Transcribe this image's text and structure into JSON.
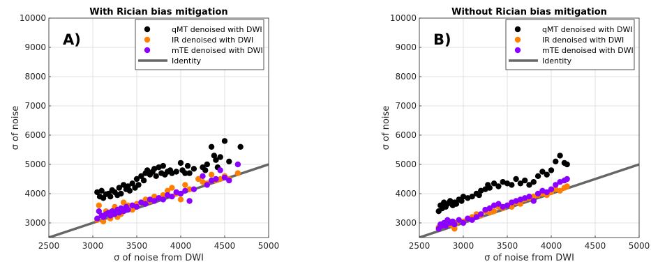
{
  "chart_data": [
    {
      "type": "scatter",
      "panel_label": "A)",
      "title": "With Rician bias mitigation",
      "xlabel": "σ of noise from DWI",
      "ylabel": "σ of noise",
      "xlim": [
        2500,
        5000
      ],
      "ylim": [
        2500,
        10000
      ],
      "xticks": [
        2500,
        3000,
        3500,
        4000,
        4500,
        5000
      ],
      "yticks": [
        3000,
        4000,
        5000,
        6000,
        7000,
        8000,
        9000,
        10000
      ],
      "grid": true,
      "legend_position": "top-right",
      "series": [
        {
          "name": "qMT denoised with DWI",
          "color": "#000000",
          "points": [
            [
              3050,
              4050
            ],
            [
              3080,
              3900
            ],
            [
              3100,
              4100
            ],
            [
              3120,
              3850
            ],
            [
              3150,
              3980
            ],
            [
              3180,
              4000
            ],
            [
              3200,
              3900
            ],
            [
              3220,
              4120
            ],
            [
              3250,
              4050
            ],
            [
              3280,
              3950
            ],
            [
              3300,
              4200
            ],
            [
              3320,
              4000
            ],
            [
              3350,
              4300
            ],
            [
              3380,
              4150
            ],
            [
              3400,
              4250
            ],
            [
              3420,
              4100
            ],
            [
              3450,
              4350
            ],
            [
              3480,
              4200
            ],
            [
              3500,
              4500
            ],
            [
              3520,
              4300
            ],
            [
              3550,
              4600
            ],
            [
              3580,
              4450
            ],
            [
              3600,
              4700
            ],
            [
              3620,
              4800
            ],
            [
              3650,
              4650
            ],
            [
              3680,
              4750
            ],
            [
              3700,
              4850
            ],
            [
              3720,
              4600
            ],
            [
              3750,
              4900
            ],
            [
              3780,
              4700
            ],
            [
              3800,
              4950
            ],
            [
              3820,
              4650
            ],
            [
              3850,
              4750
            ],
            [
              3880,
              4800
            ],
            [
              3900,
              4700
            ],
            [
              3950,
              4750
            ],
            [
              4000,
              5050
            ],
            [
              4020,
              4800
            ],
            [
              4050,
              4700
            ],
            [
              4080,
              4950
            ],
            [
              4100,
              4700
            ],
            [
              4150,
              4850
            ],
            [
              4250,
              4900
            ],
            [
              4280,
              4800
            ],
            [
              4300,
              5000
            ],
            [
              4350,
              5600
            ],
            [
              4380,
              5300
            ],
            [
              4400,
              5150
            ],
            [
              4420,
              4900
            ],
            [
              4450,
              5250
            ],
            [
              4500,
              5800
            ],
            [
              4550,
              5100
            ],
            [
              4680,
              5600
            ]
          ]
        },
        {
          "name": "IR denoised with DWI",
          "color": "#ff8000",
          "points": [
            [
              3050,
              3100
            ],
            [
              3070,
              3600
            ],
            [
              3100,
              3250
            ],
            [
              3120,
              3050
            ],
            [
              3150,
              3400
            ],
            [
              3180,
              3300
            ],
            [
              3200,
              3150
            ],
            [
              3220,
              3350
            ],
            [
              3250,
              3550
            ],
            [
              3280,
              3200
            ],
            [
              3300,
              3400
            ],
            [
              3320,
              3300
            ],
            [
              3350,
              3700
            ],
            [
              3380,
              3500
            ],
            [
              3400,
              3600
            ],
            [
              3450,
              3450
            ],
            [
              3500,
              3650
            ],
            [
              3550,
              3700
            ],
            [
              3600,
              3800
            ],
            [
              3650,
              3750
            ],
            [
              3700,
              3900
            ],
            [
              3750,
              3850
            ],
            [
              3800,
              3950
            ],
            [
              3850,
              4100
            ],
            [
              3900,
              4200
            ],
            [
              3950,
              4000
            ],
            [
              4000,
              3800
            ],
            [
              4050,
              4300
            ],
            [
              4100,
              4150
            ],
            [
              4200,
              4500
            ],
            [
              4250,
              4400
            ],
            [
              4300,
              4350
            ],
            [
              4350,
              4650
            ],
            [
              4400,
              4450
            ],
            [
              4450,
              4500
            ],
            [
              4500,
              4600
            ],
            [
              4550,
              4500
            ],
            [
              4650,
              4700
            ]
          ]
        },
        {
          "name": "mTE denoised with DWI",
          "color": "#8b00ff",
          "points": [
            [
              3050,
              3150
            ],
            [
              3070,
              3400
            ],
            [
              3100,
              3250
            ],
            [
              3120,
              3200
            ],
            [
              3150,
              3300
            ],
            [
              3180,
              3350
            ],
            [
              3200,
              3250
            ],
            [
              3220,
              3400
            ],
            [
              3250,
              3300
            ],
            [
              3280,
              3450
            ],
            [
              3300,
              3350
            ],
            [
              3320,
              3500
            ],
            [
              3350,
              3400
            ],
            [
              3380,
              3550
            ],
            [
              3400,
              3450
            ],
            [
              3450,
              3600
            ],
            [
              3500,
              3550
            ],
            [
              3550,
              3700
            ],
            [
              3600,
              3650
            ],
            [
              3650,
              3800
            ],
            [
              3700,
              3750
            ],
            [
              3750,
              3850
            ],
            [
              3800,
              3800
            ],
            [
              3850,
              3950
            ],
            [
              3900,
              3900
            ],
            [
              3950,
              4050
            ],
            [
              4000,
              4000
            ],
            [
              4050,
              4100
            ],
            [
              4100,
              3750
            ],
            [
              4150,
              4150
            ],
            [
              4250,
              4600
            ],
            [
              4300,
              4300
            ],
            [
              4350,
              4450
            ],
            [
              4400,
              4500
            ],
            [
              4450,
              4800
            ],
            [
              4500,
              4550
            ],
            [
              4550,
              4450
            ],
            [
              4650,
              5000
            ]
          ]
        }
      ],
      "identity": {
        "name": "Identity",
        "color": "#666666",
        "from": [
          2500,
          2500
        ],
        "to": [
          5000,
          5000
        ]
      }
    },
    {
      "type": "scatter",
      "panel_label": "B)",
      "title": "Without Rician bias mitigation",
      "xlabel": "σ of noise from DWI",
      "ylabel": "σ of noise",
      "xlim": [
        2500,
        5000
      ],
      "ylim": [
        2500,
        10000
      ],
      "xticks": [
        2500,
        3000,
        3500,
        4000,
        4500,
        5000
      ],
      "yticks": [
        3000,
        4000,
        5000,
        6000,
        7000,
        8000,
        9000,
        10000
      ],
      "grid": true,
      "legend_position": "top-right",
      "series": [
        {
          "name": "qMT denoised with DWI",
          "color": "#000000",
          "points": [
            [
              2720,
              3400
            ],
            [
              2740,
              3600
            ],
            [
              2760,
              3500
            ],
            [
              2780,
              3700
            ],
            [
              2800,
              3550
            ],
            [
              2820,
              3650
            ],
            [
              2850,
              3750
            ],
            [
              2880,
              3600
            ],
            [
              2900,
              3700
            ],
            [
              2920,
              3650
            ],
            [
              2950,
              3800
            ],
            [
              2980,
              3750
            ],
            [
              3000,
              3900
            ],
            [
              3050,
              3850
            ],
            [
              3100,
              3900
            ],
            [
              3150,
              4000
            ],
            [
              3180,
              3950
            ],
            [
              3200,
              4100
            ],
            [
              3250,
              4150
            ],
            [
              3280,
              4300
            ],
            [
              3300,
              4200
            ],
            [
              3350,
              4350
            ],
            [
              3400,
              4250
            ],
            [
              3450,
              4400
            ],
            [
              3500,
              4350
            ],
            [
              3550,
              4300
            ],
            [
              3600,
              4500
            ],
            [
              3650,
              4350
            ],
            [
              3700,
              4450
            ],
            [
              3750,
              4300
            ],
            [
              3800,
              4400
            ],
            [
              3850,
              4600
            ],
            [
              3900,
              4750
            ],
            [
              3950,
              4650
            ],
            [
              4000,
              4800
            ],
            [
              4050,
              5100
            ],
            [
              4100,
              5300
            ],
            [
              4150,
              5050
            ],
            [
              4180,
              5000
            ]
          ]
        },
        {
          "name": "IR denoised with DWI",
          "color": "#ff8000",
          "points": [
            [
              2720,
              2850
            ],
            [
              2750,
              2950
            ],
            [
              2780,
              2900
            ],
            [
              2800,
              3000
            ],
            [
              2830,
              2950
            ],
            [
              2850,
              3050
            ],
            [
              2880,
              2900
            ],
            [
              2900,
              2800
            ],
            [
              2920,
              3000
            ],
            [
              2950,
              3100
            ],
            [
              3000,
              3050
            ],
            [
              3050,
              3150
            ],
            [
              3100,
              3200
            ],
            [
              3150,
              3300
            ],
            [
              3200,
              3250
            ],
            [
              3250,
              3400
            ],
            [
              3300,
              3350
            ],
            [
              3350,
              3400
            ],
            [
              3400,
              3550
            ],
            [
              3450,
              3500
            ],
            [
              3500,
              3600
            ],
            [
              3550,
              3550
            ],
            [
              3600,
              3700
            ],
            [
              3650,
              3650
            ],
            [
              3700,
              3800
            ],
            [
              3750,
              3850
            ],
            [
              3800,
              3900
            ],
            [
              3850,
              3950
            ],
            [
              3900,
              4000
            ],
            [
              3950,
              3950
            ],
            [
              4000,
              4050
            ],
            [
              4050,
              4150
            ],
            [
              4100,
              4100
            ],
            [
              4150,
              4200
            ],
            [
              4180,
              4250
            ]
          ]
        },
        {
          "name": "mTE denoised with DWI",
          "color": "#8b00ff",
          "points": [
            [
              2720,
              2800
            ],
            [
              2740,
              2950
            ],
            [
              2760,
              2900
            ],
            [
              2780,
              3000
            ],
            [
              2800,
              2900
            ],
            [
              2820,
              3100
            ],
            [
              2850,
              3000
            ],
            [
              2880,
              3050
            ],
            [
              2900,
              2950
            ],
            [
              2950,
              3100
            ],
            [
              3000,
              3000
            ],
            [
              3050,
              3150
            ],
            [
              3100,
              3100
            ],
            [
              3150,
              3200
            ],
            [
              3200,
              3300
            ],
            [
              3250,
              3450
            ],
            [
              3300,
              3500
            ],
            [
              3350,
              3600
            ],
            [
              3400,
              3650
            ],
            [
              3450,
              3550
            ],
            [
              3500,
              3600
            ],
            [
              3550,
              3700
            ],
            [
              3600,
              3750
            ],
            [
              3650,
              3800
            ],
            [
              3700,
              3850
            ],
            [
              3750,
              3900
            ],
            [
              3800,
              3750
            ],
            [
              3850,
              4000
            ],
            [
              3900,
              4100
            ],
            [
              3950,
              4050
            ],
            [
              4000,
              4150
            ],
            [
              4050,
              4300
            ],
            [
              4100,
              4400
            ],
            [
              4150,
              4450
            ],
            [
              4180,
              4500
            ]
          ]
        }
      ],
      "identity": {
        "name": "Identity",
        "color": "#666666",
        "from": [
          2500,
          2500
        ],
        "to": [
          5000,
          5000
        ]
      }
    }
  ]
}
